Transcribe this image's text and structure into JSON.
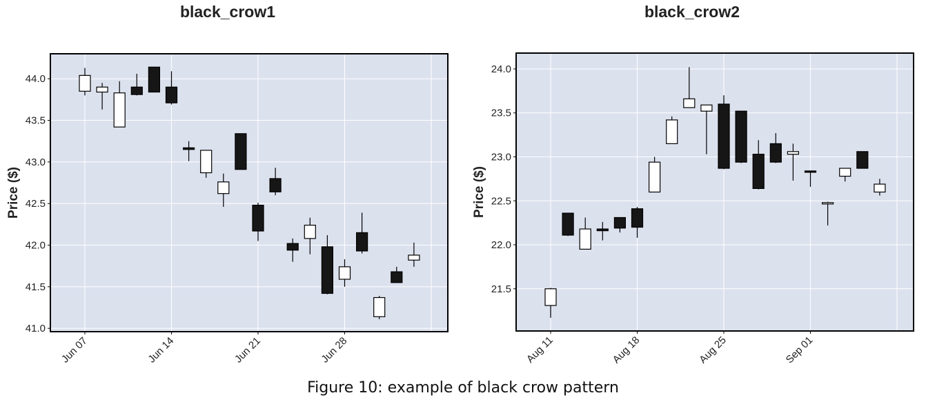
{
  "caption": "Figure 10: example of black crow pattern",
  "colors": {
    "plot_bg": "#dce1ee",
    "grid": "#ffffff",
    "down": "#161616",
    "up": "#ffffff",
    "edge": "#000000"
  },
  "chart_data": [
    {
      "type": "candlestick",
      "title": "black_crow1",
      "ylabel": "Price ($)",
      "ylim": [
        40.96,
        44.3
      ],
      "yticks": [
        41.0,
        41.5,
        42.0,
        42.5,
        43.0,
        43.5,
        44.0
      ],
      "xticks": [
        {
          "label": "Jun 07",
          "index": 0
        },
        {
          "label": "Jun 14",
          "index": 5
        },
        {
          "label": "Jun 21",
          "index": 10
        },
        {
          "label": "Jun 28",
          "index": 15
        }
      ],
      "grid": true,
      "candles": [
        {
          "o": 43.85,
          "h": 44.13,
          "l": 43.8,
          "c": 44.04
        },
        {
          "o": 43.84,
          "h": 43.95,
          "l": 43.63,
          "c": 43.9
        },
        {
          "o": 43.42,
          "h": 43.97,
          "l": 43.42,
          "c": 43.83
        },
        {
          "o": 43.9,
          "h": 44.06,
          "l": 43.8,
          "c": 43.81
        },
        {
          "o": 44.14,
          "h": 44.14,
          "l": 43.84,
          "c": 43.84
        },
        {
          "o": 43.9,
          "h": 44.09,
          "l": 43.69,
          "c": 43.71
        },
        {
          "o": 43.17,
          "h": 43.25,
          "l": 43.01,
          "c": 43.15
        },
        {
          "o": 42.87,
          "h": 43.14,
          "l": 42.81,
          "c": 43.14
        },
        {
          "o": 42.62,
          "h": 42.86,
          "l": 42.46,
          "c": 42.76
        },
        {
          "o": 43.34,
          "h": 43.34,
          "l": 42.91,
          "c": 42.91
        },
        {
          "o": 42.48,
          "h": 42.51,
          "l": 42.05,
          "c": 42.17
        },
        {
          "o": 42.8,
          "h": 42.93,
          "l": 42.6,
          "c": 42.64
        },
        {
          "o": 42.02,
          "h": 42.08,
          "l": 41.8,
          "c": 41.94
        },
        {
          "o": 42.08,
          "h": 42.33,
          "l": 41.89,
          "c": 42.24
        },
        {
          "o": 41.98,
          "h": 42.12,
          "l": 41.41,
          "c": 41.42
        },
        {
          "o": 41.59,
          "h": 41.83,
          "l": 41.5,
          "c": 41.74
        },
        {
          "o": 42.15,
          "h": 42.39,
          "l": 41.9,
          "c": 41.93
        },
        {
          "o": 41.14,
          "h": 41.39,
          "l": 41.11,
          "c": 41.37
        },
        {
          "o": 41.68,
          "h": 41.74,
          "l": 41.55,
          "c": 41.55
        },
        {
          "o": 41.82,
          "h": 42.03,
          "l": 41.74,
          "c": 41.88
        }
      ]
    },
    {
      "type": "candlestick",
      "title": "black_crow2",
      "ylabel": "Price ($)",
      "ylim": [
        21.02,
        24.18
      ],
      "yticks": [
        21.5,
        22.0,
        22.5,
        23.0,
        23.5,
        24.0
      ],
      "xticks": [
        {
          "label": "Aug 11",
          "index": 0
        },
        {
          "label": "Aug 18",
          "index": 5
        },
        {
          "label": "Aug 25",
          "index": 10
        },
        {
          "label": "Sep 01",
          "index": 15
        }
      ],
      "grid": true,
      "candles": [
        {
          "o": 21.31,
          "h": 21.51,
          "l": 21.17,
          "c": 21.5
        },
        {
          "o": 22.36,
          "h": 22.36,
          "l": 22.1,
          "c": 22.11
        },
        {
          "o": 21.95,
          "h": 22.31,
          "l": 21.95,
          "c": 22.18
        },
        {
          "o": 22.18,
          "h": 22.26,
          "l": 22.05,
          "c": 22.16
        },
        {
          "o": 22.31,
          "h": 22.31,
          "l": 22.14,
          "c": 22.19
        },
        {
          "o": 22.41,
          "h": 22.43,
          "l": 22.08,
          "c": 22.2
        },
        {
          "o": 22.6,
          "h": 23.0,
          "l": 22.6,
          "c": 22.94
        },
        {
          "o": 23.15,
          "h": 23.46,
          "l": 23.15,
          "c": 23.42
        },
        {
          "o": 23.56,
          "h": 24.02,
          "l": 23.56,
          "c": 23.66
        },
        {
          "o": 23.52,
          "h": 23.59,
          "l": 23.03,
          "c": 23.59
        },
        {
          "o": 23.6,
          "h": 23.7,
          "l": 22.86,
          "c": 22.87
        },
        {
          "o": 23.52,
          "h": 23.52,
          "l": 22.93,
          "c": 22.94
        },
        {
          "o": 23.03,
          "h": 23.19,
          "l": 22.63,
          "c": 22.64
        },
        {
          "o": 23.15,
          "h": 23.27,
          "l": 22.93,
          "c": 22.94
        },
        {
          "o": 23.03,
          "h": 23.15,
          "l": 22.73,
          "c": 23.06
        },
        {
          "o": 22.84,
          "h": 22.84,
          "l": 22.66,
          "c": 22.83
        },
        {
          "o": 22.48,
          "h": 22.49,
          "l": 22.22,
          "c": 22.48
        },
        {
          "o": 22.78,
          "h": 22.87,
          "l": 22.72,
          "c": 22.87
        },
        {
          "o": 23.06,
          "h": 23.06,
          "l": 22.87,
          "c": 22.87
        },
        {
          "o": 22.6,
          "h": 22.75,
          "l": 22.56,
          "c": 22.69
        }
      ]
    }
  ]
}
